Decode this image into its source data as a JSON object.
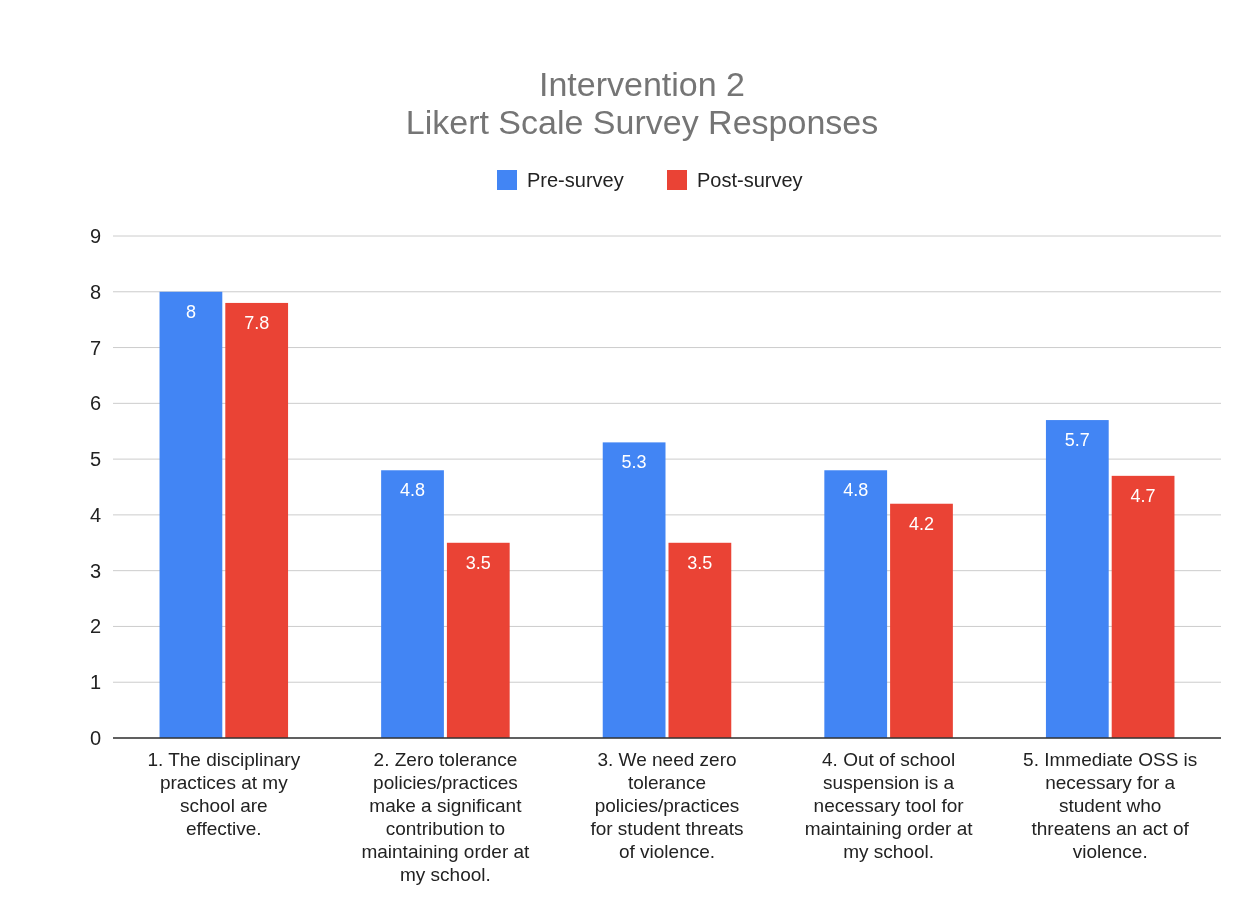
{
  "chart_data": {
    "type": "bar",
    "title": "Intervention 2\nLikert Scale Survey Responses",
    "categories": [
      "1. The disciplinary practices at my school are effective.",
      "2. Zero tolerance policies/practices make a significant contribution to maintaining order at my school.",
      "3. We need zero tolerance policies/practices for student threats of violence.",
      "4. Out of school suspension is a necessary tool for maintaining order at my school.",
      "5. Immediate OSS is necessary for a student who threatens an act of violence."
    ],
    "series": [
      {
        "name": "Pre-survey",
        "color": "#4285f4",
        "values": [
          8,
          4.8,
          5.3,
          4.8,
          5.7
        ]
      },
      {
        "name": "Post-survey",
        "color": "#ea4335",
        "values": [
          7.8,
          3.5,
          3.5,
          4.2,
          4.7
        ]
      }
    ],
    "ylim": [
      0,
      9
    ],
    "yticks": [
      0,
      1,
      2,
      3,
      4,
      5,
      6,
      7,
      8,
      9
    ],
    "grid": "y",
    "legend": "top",
    "data_labels": true
  }
}
